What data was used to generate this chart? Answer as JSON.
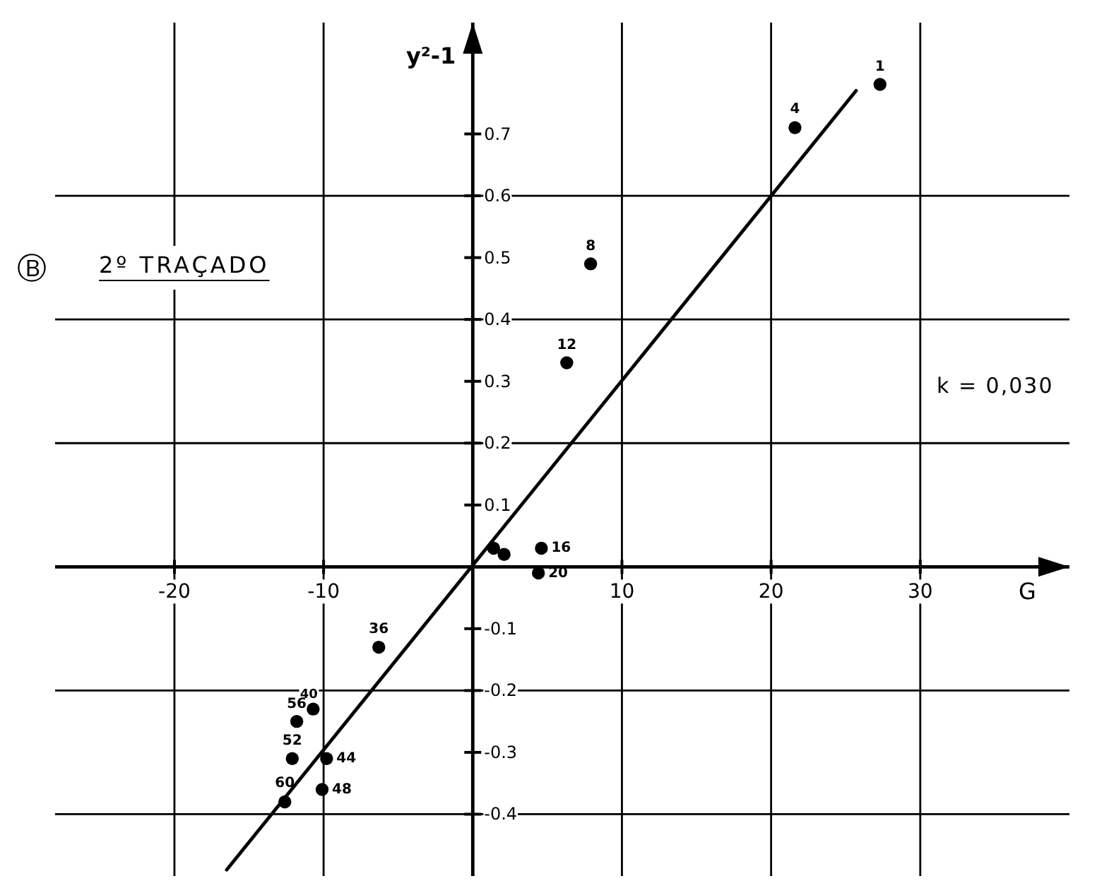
{
  "chart_data": {
    "type": "scatter",
    "title": "2º TRAÇADO",
    "xlabel": "G",
    "ylabel": "y²-1",
    "annotations": [
      "Ⓑ",
      "k = 0,030",
      {
        "text": "1",
        "x": 27.3,
        "y": 0.78
      },
      {
        "text": "4",
        "x": 21.6,
        "y": 0.71
      },
      {
        "text": "8",
        "x": 7.9,
        "y": 0.49
      },
      {
        "text": "12",
        "x": 6.3,
        "y": 0.33
      },
      {
        "text": "16",
        "x": 4.6,
        "y": 0.03
      },
      {
        "text": "20",
        "x": 4.4,
        "y": -0.01
      },
      {
        "text": "36",
        "x": -6.3,
        "y": -0.13
      },
      {
        "text": "40",
        "x": -10.7,
        "y": -0.23
      },
      {
        "text": "44",
        "x": -9.8,
        "y": -0.31
      },
      {
        "text": "48",
        "x": -10.1,
        "y": -0.36
      },
      {
        "text": "52",
        "x": -12.1,
        "y": -0.31
      },
      {
        "text": "56",
        "x": -11.8,
        "y": -0.25
      },
      {
        "text": "60",
        "x": -12.6,
        "y": -0.38
      }
    ],
    "xlim": [
      -28,
      40
    ],
    "ylim": [
      -0.5,
      0.88
    ],
    "xticks": [
      -20,
      -10,
      10,
      20,
      30
    ],
    "yticks": [
      -0.4,
      -0.3,
      -0.2,
      -0.1,
      0.1,
      0.2,
      0.3,
      0.4,
      0.5,
      0.6,
      0.7
    ],
    "grid": true,
    "marker": "circle",
    "series": [
      {
        "color": "#000000",
        "x": [
          27.3,
          21.6,
          7.9,
          6.3,
          1.4,
          2.1,
          4.6,
          4.4,
          -6.3,
          -10.7,
          -9.8,
          -10.1,
          -12.1,
          -11.8,
          -12.6
        ],
        "values": [
          0.78,
          0.71,
          0.49,
          0.33,
          0.03,
          0.02,
          0.03,
          -0.01,
          -0.13,
          -0.23,
          -0.31,
          -0.36,
          -0.31,
          -0.25,
          -0.38
        ]
      },
      {
        "type": "line",
        "color": "#000000",
        "marker": "none",
        "x": [
          -16.5,
          25.7
        ],
        "values": [
          -0.49,
          0.77
        ]
      }
    ]
  }
}
